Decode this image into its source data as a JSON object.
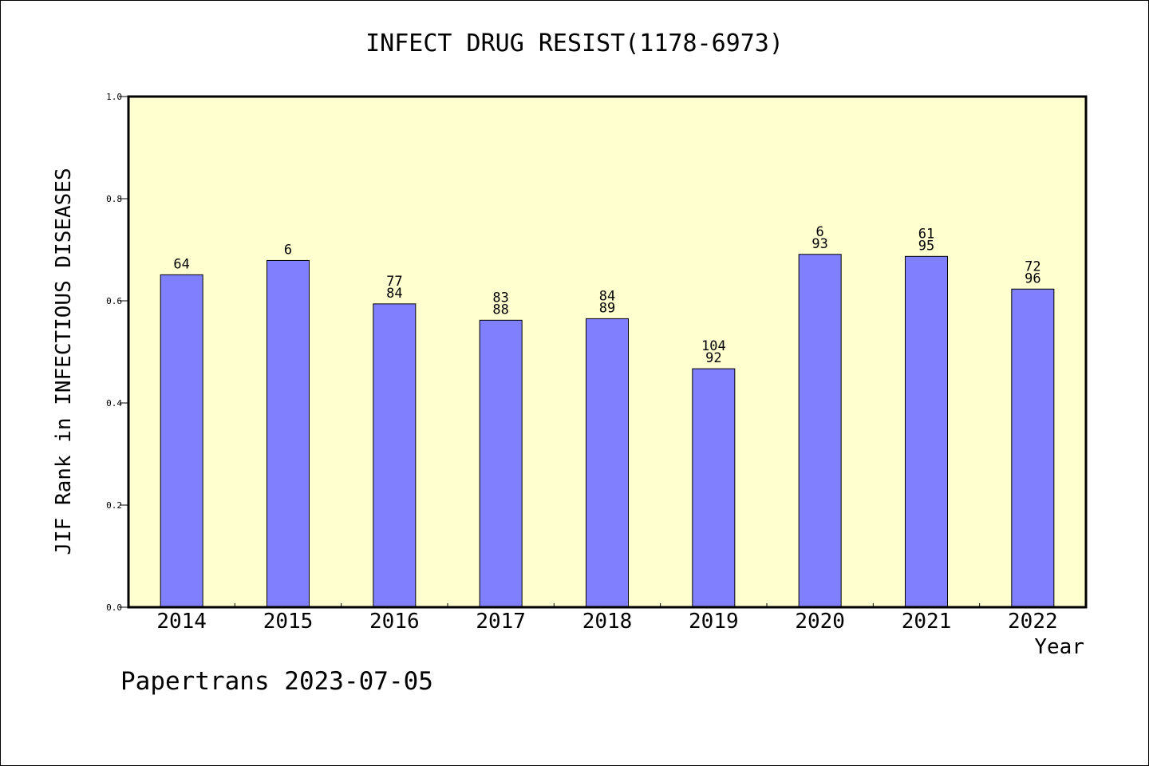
{
  "colors": {
    "plot_background": "#ffffd0",
    "bar_fill": "#8080ff",
    "bar_stroke": "#000000",
    "axis": "#000000"
  },
  "chart_data": {
    "type": "bar",
    "title": "INFECT DRUG RESIST(1178-6973)",
    "xlabel": "Year",
    "ylabel": "JIF Rank in INFECTIOUS DISEASES",
    "ylim": [
      0,
      1.0
    ],
    "yticks": [
      "0.0",
      "0.2",
      "0.4",
      "0.6",
      "0.8",
      "1.0"
    ],
    "grid": false,
    "categories": [
      "2014",
      "2015",
      "2016",
      "2017",
      "2018",
      "2019",
      "2020",
      "2021",
      "2022"
    ],
    "values": [
      0.651,
      0.679,
      0.594,
      0.562,
      0.565,
      0.467,
      0.691,
      0.687,
      0.623
    ],
    "bar_labels": [
      [
        "64"
      ],
      [
        "6"
      ],
      [
        "77",
        "84"
      ],
      [
        "83",
        "88"
      ],
      [
        "84",
        "89"
      ],
      [
        "104",
        "92"
      ],
      [
        "6",
        "93"
      ],
      [
        "61",
        "95"
      ],
      [
        "72",
        "96"
      ]
    ]
  },
  "footer": {
    "text": "Papertrans 2023-07-05"
  }
}
